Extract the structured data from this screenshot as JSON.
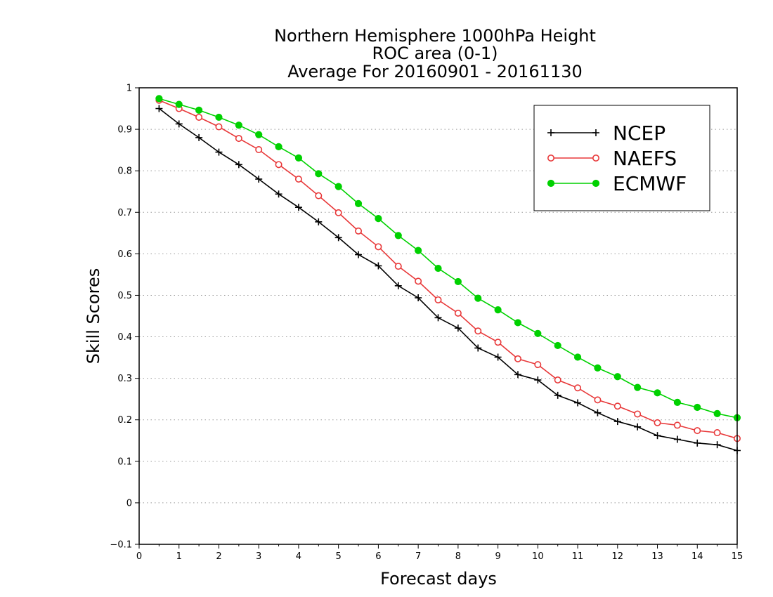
{
  "chart_data": {
    "type": "line",
    "title_lines": [
      "Northern Hemisphere 1000hPa Height",
      "ROC area (0-1)",
      "Average For 20160901 - 20161130"
    ],
    "xlabel": "Forecast days",
    "ylabel": "Skill Scores",
    "xlim": [
      0,
      15
    ],
    "ylim": [
      -0.1,
      1
    ],
    "x_ticks": [
      "0",
      "1",
      "2",
      "3",
      "4",
      "5",
      "6",
      "7",
      "8",
      "9",
      "10",
      "11",
      "12",
      "13",
      "14",
      "15"
    ],
    "y_ticks": [
      "−0.1",
      "0",
      "0.1",
      "0.2",
      "0.3",
      "0.4",
      "0.5",
      "0.6",
      "0.7",
      "0.8",
      "0.9",
      "1"
    ],
    "grid": "horizontal-dotted",
    "legend_position": "top-right",
    "x": [
      0.5,
      1,
      1.5,
      2,
      2.5,
      3,
      3.5,
      4,
      4.5,
      5,
      5.5,
      6,
      6.5,
      7,
      7.5,
      8,
      8.5,
      9,
      9.5,
      10,
      10.5,
      11,
      11.5,
      12,
      12.5,
      13,
      13.5,
      14,
      14.5,
      15
    ],
    "series": [
      {
        "name": "NCEP",
        "color": "#000000",
        "marker": "plus",
        "values": [
          0.95,
          0.913,
          0.88,
          0.845,
          0.815,
          0.78,
          0.744,
          0.712,
          0.677,
          0.639,
          0.598,
          0.571,
          0.523,
          0.494,
          0.446,
          0.421,
          0.373,
          0.351,
          0.309,
          0.296,
          0.259,
          0.241,
          0.217,
          0.196,
          0.183,
          0.162,
          0.153,
          0.144,
          0.14,
          0.126
        ]
      },
      {
        "name": "NAEFS",
        "color": "#e8393a",
        "marker": "open-circle",
        "values": [
          0.97,
          0.95,
          0.929,
          0.906,
          0.878,
          0.851,
          0.815,
          0.78,
          0.74,
          0.699,
          0.655,
          0.617,
          0.57,
          0.534,
          0.489,
          0.457,
          0.414,
          0.387,
          0.347,
          0.333,
          0.296,
          0.277,
          0.248,
          0.233,
          0.214,
          0.193,
          0.187,
          0.174,
          0.169,
          0.155
        ]
      },
      {
        "name": "ECMWF",
        "color": "#00d100",
        "marker": "filled-circle",
        "values": [
          0.974,
          0.96,
          0.946,
          0.929,
          0.91,
          0.887,
          0.858,
          0.831,
          0.793,
          0.762,
          0.721,
          0.685,
          0.644,
          0.608,
          0.565,
          0.533,
          0.493,
          0.465,
          0.434,
          0.408,
          0.379,
          0.351,
          0.325,
          0.304,
          0.278,
          0.265,
          0.242,
          0.23,
          0.215,
          0.205
        ]
      }
    ]
  }
}
